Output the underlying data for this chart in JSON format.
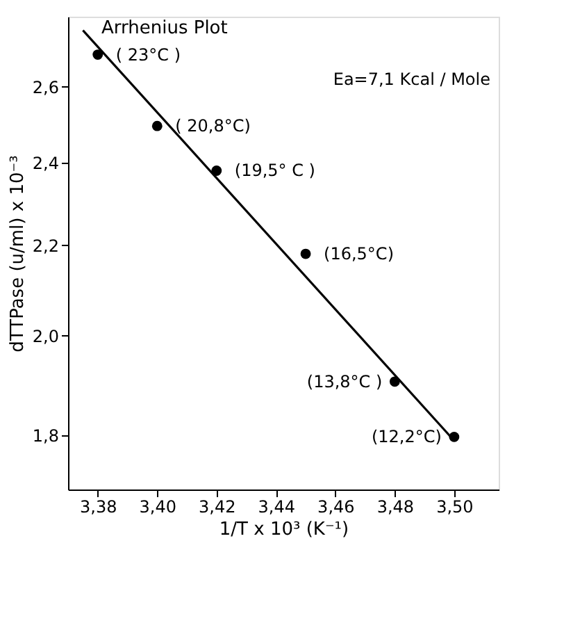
{
  "chart_data": {
    "type": "scatter",
    "title": "Arrhenius Plot",
    "xlabel": "1/T x 10³ (K⁻¹)",
    "ylabel": "dTTPase (u/ml) x 10⁻³",
    "x": [
      3.38,
      3.4,
      3.42,
      3.45,
      3.48,
      3.5
    ],
    "series": [
      {
        "color": "#000000",
        "marker": "circle",
        "values": [
          2.69,
          2.495,
          2.38,
          2.18,
          1.905,
          1.797
        ]
      },
      {
        "type": "line",
        "color": "#000000",
        "x": [
          3.375,
          3.5
        ],
        "values": [
          2.76,
          1.79
        ]
      }
    ],
    "log": "y",
    "xlim": [
      3.37,
      3.515
    ],
    "ylim": [
      1.7,
      2.8
    ],
    "xticks": [
      {
        "value": 3.38,
        "label": "3,38"
      },
      {
        "value": 3.4,
        "label": "3,40"
      },
      {
        "value": 3.42,
        "label": "3,42"
      },
      {
        "value": 3.44,
        "label": "3,44"
      },
      {
        "value": 3.46,
        "label": "3,46"
      },
      {
        "value": 3.48,
        "label": "3,48"
      },
      {
        "value": 3.5,
        "label": "3,50"
      }
    ],
    "yticks": [
      {
        "value": 1.8,
        "label": "1,8"
      },
      {
        "value": 2.0,
        "label": "2,0"
      },
      {
        "value": 2.2,
        "label": "2,2"
      },
      {
        "value": 2.4,
        "label": "2,4"
      },
      {
        "value": 2.6,
        "label": "2,6"
      }
    ],
    "grid": false,
    "annotations": [
      "Ea=7,1 Kcal / Mole",
      {
        "text": "( 23°C )",
        "x": 3.38,
        "y": 2.69
      },
      {
        "text": "( 20,8°C)",
        "x": 3.4,
        "y": 2.495
      },
      {
        "text": "(19,5° C )",
        "x": 3.42,
        "y": 2.38
      },
      {
        "text": "(16,5°C)",
        "x": 3.45,
        "y": 2.18
      },
      {
        "text": "(13,8°C )",
        "x": 3.48,
        "y": 1.905
      },
      {
        "text": "(12,2°C)",
        "x": 3.5,
        "y": 1.797
      }
    ]
  }
}
